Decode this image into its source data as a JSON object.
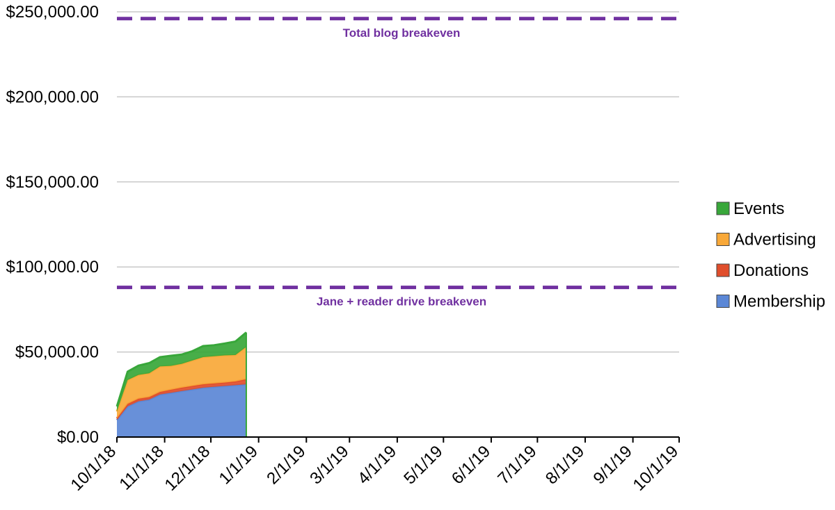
{
  "chart_data": {
    "type": "area",
    "stacked": true,
    "x_axis": {
      "type": "date",
      "min": "2018-10-01",
      "max": "2019-10-01",
      "tick_labels": [
        "10/1/18",
        "11/1/18",
        "12/1/18",
        "1/1/19",
        "2/1/19",
        "3/1/19",
        "4/1/19",
        "5/1/19",
        "6/1/19",
        "7/1/19",
        "8/1/19",
        "9/1/19",
        "10/1/19"
      ]
    },
    "y_axis": {
      "min": 0,
      "max": 250000,
      "ticks": [
        0,
        50000,
        100000,
        150000,
        200000,
        250000
      ],
      "tick_labels": [
        "$0.00",
        "$50,000.00",
        "$100,000.00",
        "$150,000.00",
        "$200,000.00",
        "$250,000.00"
      ]
    },
    "grid": true,
    "legend_position": "right",
    "x": [
      "2018-10-01",
      "2018-10-08",
      "2018-10-15",
      "2018-10-22",
      "2018-10-29",
      "2018-11-05",
      "2018-11-12",
      "2018-11-19",
      "2018-11-26",
      "2018-12-03",
      "2018-12-10",
      "2018-12-17",
      "2018-12-24"
    ],
    "series": [
      {
        "name": "Membership",
        "color": "#5b87d6",
        "values": [
          10000,
          18000,
          21000,
          22000,
          25000,
          26000,
          27000,
          28000,
          29000,
          29500,
          30000,
          30500,
          31000
        ]
      },
      {
        "name": "Donations",
        "color": "#e04e2c",
        "values": [
          1000,
          1500,
          1500,
          1500,
          1500,
          1800,
          2000,
          2000,
          2000,
          2000,
          2000,
          2200,
          3000
        ]
      },
      {
        "name": "Advertising",
        "color": "#f8a838",
        "values": [
          4000,
          14000,
          14000,
          14000,
          15000,
          14000,
          14000,
          15000,
          16000,
          16000,
          16000,
          15500,
          19000
        ]
      },
      {
        "name": "Events",
        "color": "#38a73a",
        "values": [
          3000,
          5000,
          5500,
          6000,
          5500,
          6000,
          5500,
          5500,
          6500,
          6500,
          7000,
          8000,
          8500
        ]
      }
    ],
    "reference_lines": [
      {
        "label": "Total blog breakeven",
        "value": 246000,
        "color": "#7030a0"
      },
      {
        "label": "Jane + reader drive breakeven",
        "value": 88000,
        "color": "#7030a0"
      }
    ],
    "legend_order": [
      "Events",
      "Advertising",
      "Donations",
      "Membership"
    ]
  }
}
